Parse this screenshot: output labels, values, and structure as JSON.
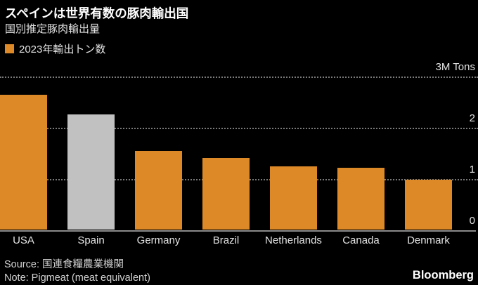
{
  "header": {
    "title": "スペインは世界有数の豚肉輸出国",
    "subtitle": "国別推定豚肉輸出量"
  },
  "legend": {
    "swatch_color": "#DE8927",
    "label": "2023年輸出トン数"
  },
  "chart_data": {
    "type": "bar",
    "title": "スペインは世界有数の豚肉輸出国",
    "subtitle": "国別推定豚肉輸出量",
    "series_label": "2023年輸出トン数",
    "categories": [
      "USA",
      "Spain",
      "Germany",
      "Brazil",
      "Netherlands",
      "Canada",
      "Denmark"
    ],
    "values": [
      2.65,
      2.26,
      1.55,
      1.41,
      1.25,
      1.22,
      0.98
    ],
    "unit": "M Tons",
    "ylim": [
      0,
      3
    ],
    "yticks": [
      {
        "value": 3,
        "label": "3M Tons"
      },
      {
        "value": 2,
        "label": "2"
      },
      {
        "value": 1,
        "label": "1"
      },
      {
        "value": 0,
        "label": "0"
      }
    ],
    "grid": "horizontal-dotted",
    "legend_position": "top-left",
    "axis_labels_position": "right",
    "bar_color": "#DE8927",
    "highlight_category": "Spain",
    "highlight_color": "#C1C1C1"
  },
  "footer": {
    "source": "Source: 国連食糧農業機関",
    "note": "Note: Pigmeat (meat equivalent)",
    "brand": "Bloomberg"
  },
  "colors": {
    "background": "#000000",
    "accent_orange": "#DE8927",
    "highlight_gray": "#C1C1C1",
    "gridline": "#7A7A7A",
    "baseline": "#8A8A8A",
    "text_primary": "#FFFFFF",
    "text_secondary": "#E3E3E3",
    "text_footer": "#D2D2D2"
  }
}
